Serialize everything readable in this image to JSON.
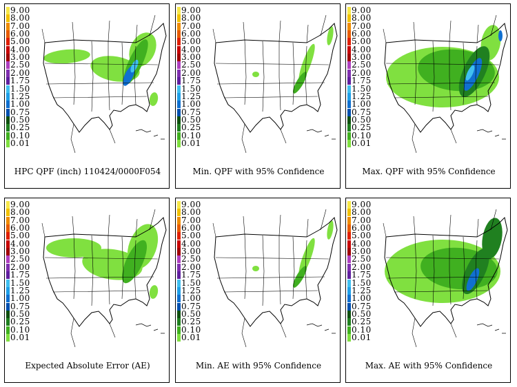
{
  "legend": {
    "labels": [
      "9.00",
      "8.00",
      "7.00",
      "6.00",
      "5.00",
      "4.00",
      "3.00",
      "2.50",
      "2.00",
      "1.75",
      "1.50",
      "1.25",
      "1.00",
      "0.75",
      "0.50",
      "0.25",
      "0.10",
      "0.01"
    ],
    "colors": [
      "#f7e84a",
      "#f2c200",
      "#f08c00",
      "#e85c00",
      "#e02000",
      "#c80000",
      "#a00000",
      "#b040c0",
      "#8030b0",
      "#6020a0",
      "#40c0f0",
      "#20a0e8",
      "#1070d0",
      "#0050b0",
      "#105010",
      "#208020",
      "#40b020",
      "#80e040"
    ]
  },
  "panels": [
    {
      "caption": "HPC QPF (inch) 110424/0000F054",
      "intensity": "mid"
    },
    {
      "caption": "Min. QPF with 95% Confidence",
      "intensity": "low"
    },
    {
      "caption": "Max. QPF with 95% Confidence",
      "intensity": "high"
    },
    {
      "caption": "Expected Absolute Error (AE)",
      "intensity": "mid2"
    },
    {
      "caption": "Min. AE with 95% Confidence",
      "intensity": "low"
    },
    {
      "caption": "Max. AE with 95% Confidence",
      "intensity": "high2"
    }
  ]
}
